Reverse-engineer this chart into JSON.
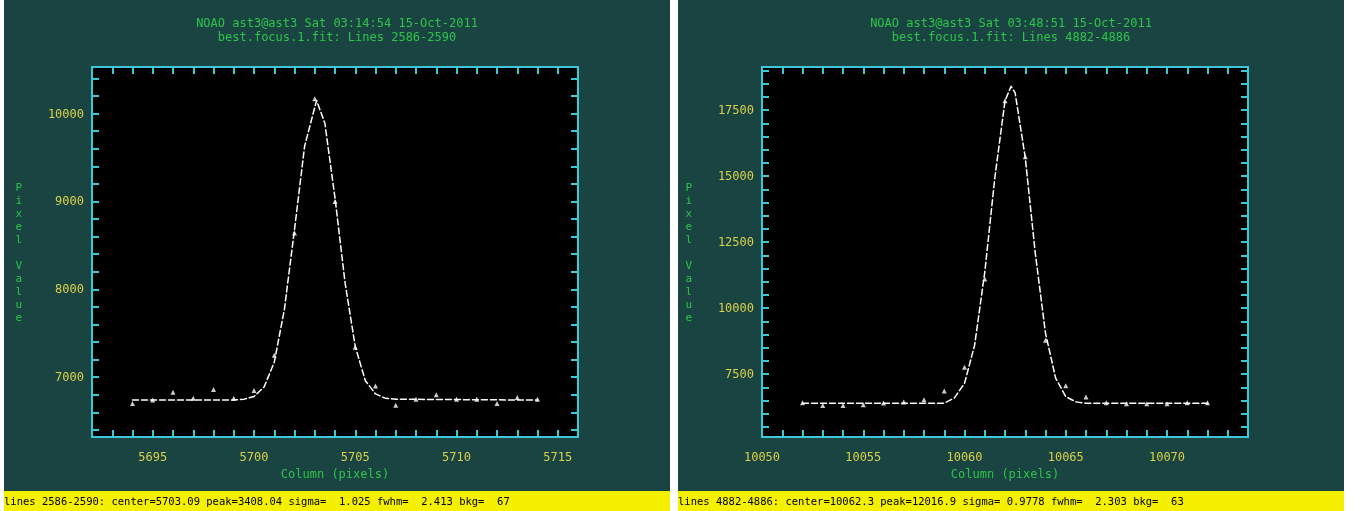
{
  "chart_data": [
    {
      "type": "scatter",
      "title": "NOAO ast3@ast3 Sat 03:14:54 15-Oct-2011",
      "subtitle": "best.focus.1.fit: Lines 2586-2590",
      "xlabel": "Column (pixels)",
      "ylabel": "Pixel Value",
      "annotations": [
        "lines 2586-2590: center=5703.09 peak=3408.04 sigma=  1.025 fwhm=  2.413 bkg=  67"
      ],
      "xlim": [
        5692,
        5716
      ],
      "xticks": [
        {
          "value": 5692,
          "label": null
        },
        {
          "value": 5693,
          "label": null
        },
        {
          "value": 5694,
          "label": null
        },
        5695,
        {
          "value": 5696,
          "label": null
        },
        {
          "value": 5697,
          "label": null
        },
        {
          "value": 5698,
          "label": null
        },
        {
          "value": 5699,
          "label": null
        },
        5700,
        {
          "value": 5701,
          "label": null
        },
        {
          "value": 5702,
          "label": null
        },
        {
          "value": 5703,
          "label": null
        },
        {
          "value": 5704,
          "label": null
        },
        5705,
        {
          "value": 5706,
          "label": null
        },
        {
          "value": 5707,
          "label": null
        },
        {
          "value": 5708,
          "label": null
        },
        {
          "value": 5709,
          "label": null
        },
        5710,
        {
          "value": 5711,
          "label": null
        },
        {
          "value": 5712,
          "label": null
        },
        {
          "value": 5713,
          "label": null
        },
        {
          "value": 5714,
          "label": null
        },
        5715,
        {
          "value": 5716,
          "label": null
        }
      ],
      "ylim": [
        6320,
        10530
      ],
      "yticks": [
        {
          "value": 6400,
          "label": null
        },
        {
          "value": 6600,
          "label": null
        },
        {
          "value": 6800,
          "label": null
        },
        7000,
        {
          "value": 7200,
          "label": null
        },
        {
          "value": 7400,
          "label": null
        },
        {
          "value": 7600,
          "label": null
        },
        {
          "value": 7800,
          "label": null
        },
        8000,
        {
          "value": 8200,
          "label": null
        },
        {
          "value": 8400,
          "label": null
        },
        {
          "value": 8600,
          "label": null
        },
        {
          "value": 8800,
          "label": null
        },
        9000,
        {
          "value": 9200,
          "label": null
        },
        {
          "value": 9400,
          "label": null
        },
        {
          "value": 9600,
          "label": null
        },
        {
          "value": 9800,
          "label": null
        },
        10000,
        {
          "value": 10200,
          "label": null
        },
        {
          "value": 10400,
          "label": null
        }
      ],
      "series": [
        {
          "color": "#ffffff",
          "marker": "triangle",
          "x": [
            5694,
            5695,
            5696,
            5697,
            5698,
            5699,
            5700,
            5701,
            5702,
            5703,
            5704,
            5705,
            5706,
            5707,
            5708,
            5709,
            5710,
            5711,
            5712,
            5713,
            5714
          ],
          "values": [
            6700,
            6740,
            6830,
            6760,
            6860,
            6760,
            6850,
            7250,
            8640,
            10170,
            9000,
            7340,
            6900,
            6680,
            6750,
            6800,
            6750,
            6750,
            6700,
            6770,
            6750
          ]
        },
        {
          "type": "line",
          "color": "#ffffff",
          "marker": "none",
          "line_style": "dashed",
          "x": [
            5694,
            5699,
            5699.5,
            5700,
            5700.5,
            5701,
            5701.5,
            5702,
            5702.5,
            5703.09,
            5703.5,
            5704,
            5704.5,
            5705,
            5705.5,
            5706,
            5706.5,
            5707,
            5714
          ],
          "values": [
            6740,
            6740,
            6750,
            6780,
            6890,
            7170,
            7770,
            8680,
            9630,
            10150,
            9890,
            9040,
            8070,
            7350,
            6960,
            6810,
            6760,
            6750,
            6740
          ]
        }
      ]
    },
    {
      "type": "scatter",
      "title": "NOAO ast3@ast3 Sat 03:48:51 15-Oct-2011",
      "subtitle": "best.focus.1.fit: Lines 4882-4886",
      "xlabel": "Column (pixels)",
      "ylabel": "Pixel Value",
      "annotations": [
        "lines 4882-4886: center=10062.3 peak=12016.9 sigma= 0.9778 fwhm=  2.303 bkg=  63"
      ],
      "xlim": [
        10050,
        10074
      ],
      "xticks": [
        10050,
        {
          "value": 10051,
          "label": null
        },
        {
          "value": 10052,
          "label": null
        },
        {
          "value": 10053,
          "label": null
        },
        {
          "value": 10054,
          "label": null
        },
        10055,
        {
          "value": 10056,
          "label": null
        },
        {
          "value": 10057,
          "label": null
        },
        {
          "value": 10058,
          "label": null
        },
        {
          "value": 10059,
          "label": null
        },
        10060,
        {
          "value": 10061,
          "label": null
        },
        {
          "value": 10062,
          "label": null
        },
        {
          "value": 10063,
          "label": null
        },
        {
          "value": 10064,
          "label": null
        },
        10065,
        {
          "value": 10066,
          "label": null
        },
        {
          "value": 10067,
          "label": null
        },
        {
          "value": 10068,
          "label": null
        },
        {
          "value": 10069,
          "label": null
        },
        10070,
        {
          "value": 10071,
          "label": null
        },
        {
          "value": 10072,
          "label": null
        },
        {
          "value": 10073,
          "label": null
        },
        {
          "value": 10074,
          "label": null
        }
      ],
      "ylim": [
        5120,
        19130
      ],
      "yticks": [
        {
          "value": 5500,
          "label": null
        },
        {
          "value": 6000,
          "label": null
        },
        {
          "value": 6500,
          "label": null
        },
        {
          "value": 7000,
          "label": null
        },
        7500,
        {
          "value": 8000,
          "label": null
        },
        {
          "value": 8500,
          "label": null
        },
        {
          "value": 9000,
          "label": null
        },
        {
          "value": 9500,
          "label": null
        },
        10000,
        {
          "value": 10500,
          "label": null
        },
        {
          "value": 11000,
          "label": null
        },
        {
          "value": 11500,
          "label": null
        },
        {
          "value": 12000,
          "label": null
        },
        12500,
        {
          "value": 13000,
          "label": null
        },
        {
          "value": 13500,
          "label": null
        },
        {
          "value": 14000,
          "label": null
        },
        {
          "value": 14500,
          "label": null
        },
        15000,
        {
          "value": 15500,
          "label": null
        },
        {
          "value": 16000,
          "label": null
        },
        {
          "value": 16500,
          "label": null
        },
        {
          "value": 17000,
          "label": null
        },
        17500,
        {
          "value": 18000,
          "label": null
        },
        {
          "value": 18500,
          "label": null
        },
        {
          "value": 19000,
          "label": null
        }
      ],
      "series": [
        {
          "color": "#ffffff",
          "marker": "triangle",
          "x": [
            10052,
            10053,
            10054,
            10055,
            10056,
            10057,
            10058,
            10059,
            10060,
            10061,
            10062,
            10063,
            10064,
            10065,
            10066,
            10067,
            10068,
            10069,
            10070,
            10071,
            10072
          ],
          "values": [
            6420,
            6310,
            6310,
            6340,
            6410,
            6450,
            6530,
            6860,
            7760,
            11100,
            17850,
            15730,
            8780,
            7060,
            6630,
            6420,
            6380,
            6380,
            6380,
            6420,
            6420
          ]
        },
        {
          "type": "line",
          "color": "#ffffff",
          "marker": "none",
          "line_style": "dashed",
          "x": [
            10052,
            10059,
            10059.5,
            10060,
            10060.5,
            10061,
            10061.5,
            10062,
            10062.3,
            10062.5,
            10063,
            10063.5,
            10064,
            10064.5,
            10065,
            10065.5,
            10066,
            10072
          ],
          "values": [
            6400,
            6400,
            6600,
            7150,
            8600,
            11350,
            14950,
            17850,
            18400,
            18150,
            15700,
            12050,
            9050,
            7350,
            6650,
            6450,
            6400,
            6400
          ]
        }
      ]
    }
  ]
}
